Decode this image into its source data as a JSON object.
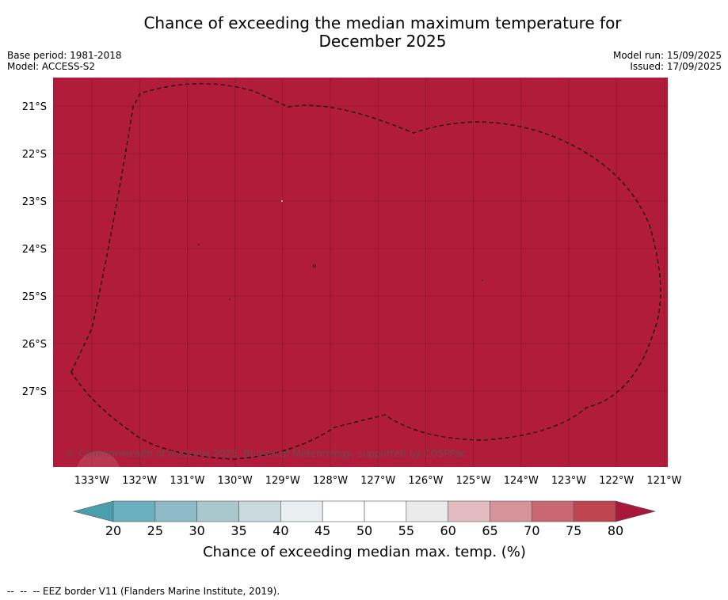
{
  "header": {
    "title_line1": "Chance of exceeding the median maximum temperature for",
    "title_line2": "December 2025",
    "base_period": "Base period: 1981-2018",
    "model": "Model: ACCESS-S2",
    "model_run": "Model run: 15/09/2025",
    "issued": "Issued: 17/09/2025"
  },
  "map": {
    "fill_color": "#b01c39",
    "lat_labels": [
      "21°S",
      "22°S",
      "23°S",
      "24°S",
      "25°S",
      "26°S",
      "27°S"
    ],
    "lon_labels": [
      "133°W",
      "132°W",
      "131°W",
      "130°W",
      "129°W",
      "128°W",
      "127°W",
      "126°W",
      "125°W",
      "124°W",
      "123°W",
      "122°W",
      "121°W"
    ],
    "credit": "© Commonwealth of Australia 2025, Bureau of Meteorology, supported by COSPPac"
  },
  "colorbar": {
    "title": "Chance of exceeding median max. temp. (%)",
    "tick_labels": [
      "20",
      "25",
      "30",
      "35",
      "40",
      "45",
      "50",
      "55",
      "60",
      "65",
      "70",
      "75",
      "80"
    ],
    "under_color": "#4a9fad",
    "over_color": "#a8183a",
    "colors": [
      "#6aafbf",
      "#8dbac6",
      "#a9c8ce",
      "#c9d9dd",
      "#e9eff1",
      "#ffffff",
      "#ffffff",
      "#eaeaea",
      "#e3bcc2",
      "#d69399",
      "#c96872",
      "#bf4551"
    ]
  },
  "footer": {
    "legend_line": "--  --  -- EEZ border V11 (Flanders Marine Institute, 2019)."
  }
}
